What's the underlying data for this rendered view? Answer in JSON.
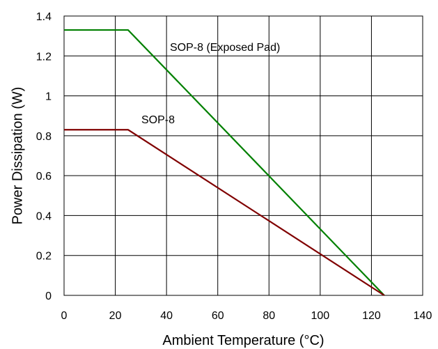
{
  "chart_data": {
    "type": "line",
    "title": "",
    "xlabel": "Ambient Temperature (°C)",
    "ylabel": "Power Dissipation (W)",
    "xlim": [
      0,
      140
    ],
    "ylim": [
      0,
      1.4
    ],
    "xticks": [
      "0",
      "20",
      "40",
      "60",
      "80",
      "100",
      "120",
      "140"
    ],
    "yticks": [
      "0",
      "0.2",
      "0.4",
      "0.6",
      "0.8",
      "1",
      "1.2",
      "1.4"
    ],
    "grid": true,
    "series": [
      {
        "name": "SOP-8 (Exposed Pad)",
        "color": "#008000",
        "x": [
          0,
          25,
          125
        ],
        "y": [
          1.33,
          1.33,
          0
        ]
      },
      {
        "name": "SOP-8",
        "color": "#800000",
        "x": [
          0,
          25,
          125
        ],
        "y": [
          0.83,
          0.83,
          0
        ]
      }
    ],
    "annotations": [
      {
        "text": "SOP-8 (Exposed Pad)",
        "series": 0
      },
      {
        "text": "SOP-8",
        "series": 1
      }
    ]
  }
}
